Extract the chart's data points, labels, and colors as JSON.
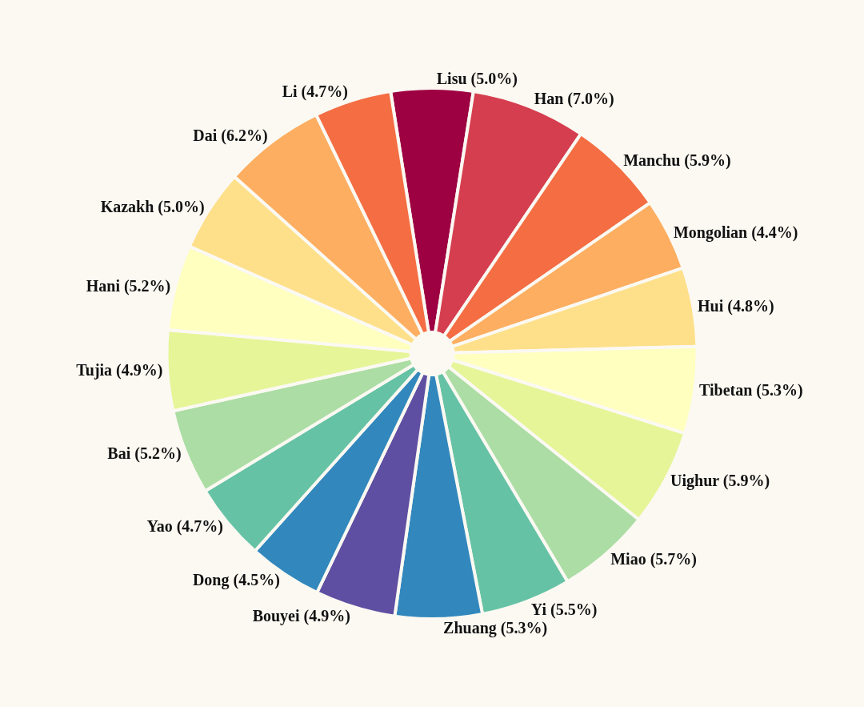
{
  "chart_data": {
    "type": "pie",
    "categories": [
      "Lisu",
      "Han",
      "Manchu",
      "Mongolian",
      "Hui",
      "Tibetan",
      "Uighur",
      "Miao",
      "Yi",
      "Zhuang",
      "Bouyei",
      "Dong",
      "Yao",
      "Bai",
      "Tujia",
      "Hani",
      "Kazakh",
      "Dai",
      "Li"
    ],
    "values": [
      5.0,
      7.0,
      5.9,
      4.4,
      4.8,
      5.3,
      5.9,
      5.7,
      5.5,
      5.3,
      4.9,
      4.5,
      4.7,
      5.2,
      4.9,
      5.2,
      5.0,
      6.2,
      4.7
    ],
    "value_labels": [
      "(5.0%)",
      "(7.0%)",
      "(5.9%)",
      "(4.4%)",
      "(4.8%)",
      "(5.3%)",
      "(5.9%)",
      "(5.7%)",
      "(5.5%)",
      "(5.3%)",
      "(4.9%)",
      "(4.5%)",
      "(4.7%)",
      "(5.2%)",
      "(4.9%)",
      "(5.2%)",
      "(5.0%)",
      "(6.2%)",
      "(4.7%)"
    ],
    "colors": [
      "#9e0142",
      "#d53e4f",
      "#f46d43",
      "#fdae61",
      "#fee08b",
      "#ffffbf",
      "#e6f598",
      "#abdda4",
      "#66c2a5",
      "#3288bd",
      "#5e4fa2",
      "#3288bd",
      "#66c2a5",
      "#abdda4",
      "#e6f598",
      "#ffffbf",
      "#fee08b",
      "#fdae61",
      "#f46d43"
    ],
    "legend": false
  }
}
